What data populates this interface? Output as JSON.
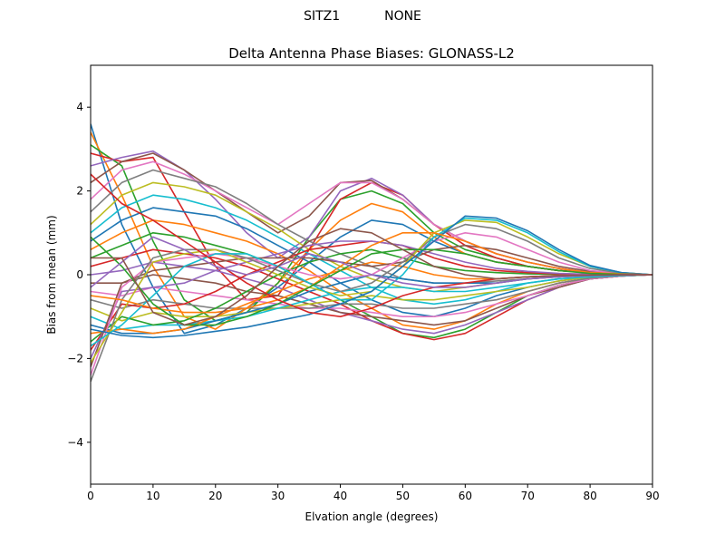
{
  "figure": {
    "suptitle": "SITZ1           NONE"
  },
  "chart_data": {
    "type": "line",
    "title": "Delta Antenna Phase Biases: GLONASS-L2",
    "xlabel": "Elvation angle (degrees)",
    "ylabel": "Bias from mean (mm)",
    "xlim": [
      0,
      90
    ],
    "ylim": [
      -5,
      5
    ],
    "xticks": [
      0,
      10,
      20,
      30,
      40,
      50,
      60,
      70,
      80,
      90
    ],
    "yticks": [
      -4,
      -2,
      0,
      2,
      4
    ],
    "ytick_labels": [
      "−4",
      "−2",
      "0",
      "2",
      "4"
    ],
    "grid": false,
    "legend": "none",
    "x": [
      0,
      5,
      10,
      15,
      20,
      25,
      30,
      35,
      40,
      45,
      50,
      55,
      60,
      65,
      70,
      75,
      80,
      85,
      90
    ],
    "colors": [
      "#1f77b4",
      "#ff7f0e",
      "#2ca02c",
      "#d62728",
      "#9467bd",
      "#8c564b",
      "#e377c2",
      "#7f7f7f",
      "#bcbd22",
      "#17becf"
    ],
    "series": [
      {
        "values": [
          3.6,
          1.2,
          -0.3,
          -1.4,
          -1.2,
          -0.8,
          -0.3,
          0.3,
          0.9,
          1.3,
          1.2,
          0.8,
          0.5,
          0.3,
          0.2,
          0.1,
          0.05,
          0.02,
          0.0
        ]
      },
      {
        "values": [
          3.4,
          1.9,
          0.2,
          -1.0,
          -1.3,
          -0.8,
          -0.2,
          0.6,
          1.3,
          1.7,
          1.5,
          0.9,
          0.5,
          0.3,
          0.2,
          0.1,
          0.05,
          0.02,
          0.0
        ]
      },
      {
        "values": [
          3.1,
          2.6,
          0.8,
          -0.6,
          -1.1,
          -0.9,
          -0.2,
          0.9,
          1.8,
          2.0,
          1.7,
          1.0,
          0.6,
          0.4,
          0.2,
          0.1,
          0.05,
          0.02,
          0.0
        ]
      },
      {
        "values": [
          2.9,
          2.7,
          2.8,
          1.5,
          0.2,
          -0.6,
          -0.5,
          0.6,
          1.8,
          2.2,
          1.9,
          1.2,
          0.7,
          0.4,
          0.2,
          0.1,
          0.05,
          0.02,
          0.0
        ]
      },
      {
        "values": [
          2.6,
          2.8,
          2.95,
          2.5,
          1.8,
          1.0,
          0.4,
          0.9,
          2.0,
          2.3,
          1.9,
          1.2,
          0.8,
          0.5,
          0.3,
          0.15,
          0.05,
          0.02,
          0.0
        ]
      },
      {
        "values": [
          2.2,
          2.7,
          2.9,
          2.5,
          2.0,
          1.5,
          1.0,
          1.4,
          2.2,
          2.25,
          1.8,
          1.2,
          0.8,
          0.5,
          0.3,
          0.15,
          0.05,
          0.02,
          0.0
        ]
      },
      {
        "values": [
          1.8,
          2.5,
          2.7,
          2.4,
          2.0,
          1.6,
          1.2,
          1.7,
          2.2,
          2.2,
          1.8,
          1.2,
          0.8,
          0.5,
          0.3,
          0.15,
          0.05,
          0.02,
          0.0
        ]
      },
      {
        "values": [
          1.5,
          2.2,
          2.5,
          2.3,
          2.1,
          1.7,
          1.2,
          0.8,
          0.5,
          0.2,
          -0.1,
          -0.2,
          -0.2,
          -0.15,
          -0.1,
          -0.05,
          -0.02,
          -0.01,
          0.0
        ]
      },
      {
        "values": [
          1.2,
          1.9,
          2.2,
          2.1,
          1.9,
          1.5,
          1.1,
          0.6,
          0.2,
          -0.1,
          -0.3,
          -0.4,
          -0.3,
          -0.2,
          -0.1,
          -0.05,
          -0.02,
          -0.01,
          0.0
        ]
      },
      {
        "values": [
          1.0,
          1.6,
          1.9,
          1.8,
          1.6,
          1.3,
          0.9,
          0.5,
          0.1,
          -0.3,
          -0.6,
          -0.7,
          -0.6,
          -0.4,
          -0.2,
          -0.1,
          -0.05,
          -0.02,
          0.0
        ]
      },
      {
        "values": [
          0.8,
          1.3,
          1.6,
          1.5,
          1.4,
          1.1,
          0.7,
          0.3,
          -0.2,
          -0.6,
          -0.9,
          -1.0,
          -0.8,
          -0.5,
          -0.3,
          -0.15,
          -0.05,
          -0.02,
          0.0
        ]
      },
      {
        "values": [
          0.6,
          1.0,
          1.3,
          1.2,
          1.0,
          0.8,
          0.5,
          0.1,
          -0.4,
          -0.8,
          -1.2,
          -1.3,
          -1.1,
          -0.7,
          -0.4,
          -0.2,
          -0.08,
          -0.02,
          0.0
        ]
      },
      {
        "values": [
          0.4,
          0.7,
          1.0,
          0.9,
          0.7,
          0.5,
          0.2,
          -0.2,
          -0.6,
          -1.0,
          -1.4,
          -1.5,
          -1.3,
          -0.9,
          -0.5,
          -0.25,
          -0.1,
          -0.03,
          0.0
        ]
      },
      {
        "values": [
          0.2,
          0.4,
          0.6,
          0.5,
          0.4,
          0.2,
          -0.1,
          -0.4,
          -0.7,
          -1.1,
          -1.4,
          -1.55,
          -1.4,
          -1.0,
          -0.6,
          -0.3,
          -0.1,
          -0.03,
          0.0
        ]
      },
      {
        "values": [
          0.0,
          0.1,
          0.3,
          0.2,
          0.1,
          -0.1,
          -0.3,
          -0.6,
          -0.9,
          -1.1,
          -1.3,
          -1.4,
          -1.2,
          -0.9,
          -0.6,
          -0.3,
          -0.1,
          -0.03,
          0.0
        ]
      },
      {
        "values": [
          -0.2,
          -0.2,
          0.0,
          -0.1,
          -0.2,
          -0.4,
          -0.5,
          -0.7,
          -0.9,
          -1.0,
          -1.1,
          -1.2,
          -1.1,
          -0.8,
          -0.5,
          -0.3,
          -0.1,
          -0.03,
          0.0
        ]
      },
      {
        "values": [
          -0.4,
          -0.5,
          -0.3,
          -0.4,
          -0.5,
          -0.6,
          -0.7,
          -0.8,
          -0.8,
          -0.9,
          -1.0,
          -1.0,
          -0.9,
          -0.7,
          -0.5,
          -0.25,
          -0.1,
          -0.03,
          0.0
        ]
      },
      {
        "values": [
          -0.6,
          -0.8,
          -0.6,
          -0.7,
          -0.8,
          -0.8,
          -0.8,
          -0.8,
          -0.7,
          -0.7,
          -0.8,
          -0.8,
          -0.7,
          -0.6,
          -0.4,
          -0.2,
          -0.08,
          -0.02,
          0.0
        ]
      },
      {
        "values": [
          -0.8,
          -1.1,
          -0.9,
          -1.0,
          -1.0,
          -0.9,
          -0.8,
          -0.7,
          -0.6,
          -0.5,
          -0.6,
          -0.6,
          -0.5,
          -0.4,
          -0.3,
          -0.15,
          -0.05,
          -0.02,
          0.0
        ]
      },
      {
        "values": [
          -1.0,
          -1.3,
          -1.2,
          -1.2,
          -1.1,
          -1.0,
          -0.8,
          -0.6,
          -0.4,
          -0.3,
          -0.3,
          -0.4,
          -0.4,
          -0.3,
          -0.2,
          -0.1,
          -0.05,
          -0.02,
          0.0
        ]
      },
      {
        "values": [
          -1.2,
          -1.4,
          -1.4,
          -1.3,
          -1.1,
          -0.9,
          -0.7,
          -0.4,
          -0.2,
          0.0,
          -0.1,
          -0.2,
          -0.2,
          -0.2,
          -0.1,
          -0.05,
          -0.02,
          -0.01,
          0.0
        ]
      },
      {
        "values": [
          -1.4,
          -1.3,
          -1.4,
          -1.3,
          -1.0,
          -0.7,
          -0.4,
          -0.1,
          0.1,
          0.3,
          0.2,
          0.0,
          -0.1,
          -0.1,
          -0.05,
          -0.02,
          -0.01,
          0.0,
          0.0
        ]
      },
      {
        "values": [
          -1.6,
          -1.0,
          -1.2,
          -1.1,
          -0.8,
          -0.4,
          0.0,
          0.3,
          0.5,
          0.6,
          0.4,
          0.2,
          0.1,
          0.05,
          0.02,
          0.01,
          0.0,
          0.0,
          0.0
        ]
      },
      {
        "values": [
          -1.8,
          -0.7,
          -0.8,
          -0.7,
          -0.4,
          0.0,
          0.3,
          0.6,
          0.7,
          0.8,
          0.7,
          0.4,
          0.2,
          0.1,
          0.05,
          0.02,
          0.01,
          0.0,
          0.0
        ]
      },
      {
        "values": [
          -2.0,
          -0.4,
          -0.3,
          -0.2,
          0.1,
          0.3,
          0.5,
          0.7,
          0.8,
          0.8,
          0.7,
          0.5,
          0.3,
          0.15,
          0.08,
          0.03,
          0.01,
          0.0,
          0.0
        ]
      },
      {
        "values": [
          -2.2,
          -0.2,
          0.1,
          0.2,
          0.3,
          0.4,
          0.4,
          0.4,
          0.3,
          0.2,
          0.3,
          0.6,
          0.7,
          0.6,
          0.4,
          0.2,
          0.08,
          0.02,
          0.0
        ]
      },
      {
        "values": [
          -2.4,
          -0.3,
          0.3,
          0.4,
          0.5,
          0.4,
          0.2,
          0.0,
          -0.1,
          0.0,
          0.4,
          0.8,
          1.0,
          0.9,
          0.6,
          0.3,
          0.1,
          0.03,
          0.0
        ]
      },
      {
        "values": [
          -2.55,
          -0.6,
          0.4,
          0.6,
          0.6,
          0.4,
          0.1,
          -0.2,
          -0.4,
          -0.2,
          0.3,
          0.9,
          1.2,
          1.1,
          0.8,
          0.4,
          0.15,
          0.04,
          0.0
        ]
      },
      {
        "values": [
          -2.1,
          -0.9,
          0.3,
          0.5,
          0.6,
          0.3,
          0.0,
          -0.3,
          -0.5,
          -0.4,
          0.2,
          1.0,
          1.3,
          1.25,
          0.9,
          0.5,
          0.2,
          0.05,
          0.0
        ]
      },
      {
        "values": [
          -1.7,
          -1.2,
          -0.5,
          0.2,
          0.5,
          0.5,
          0.2,
          -0.2,
          -0.6,
          -0.6,
          0.0,
          0.9,
          1.35,
          1.3,
          1.0,
          0.55,
          0.2,
          0.05,
          0.0
        ]
      },
      {
        "values": [
          -1.3,
          -1.45,
          -1.5,
          -1.45,
          -1.35,
          -1.25,
          -1.1,
          -0.95,
          -0.7,
          -0.4,
          0.2,
          0.8,
          1.4,
          1.35,
          1.05,
          0.6,
          0.22,
          0.05,
          0.0
        ]
      },
      {
        "values": [
          -0.5,
          -0.6,
          -0.8,
          -0.9,
          -0.9,
          -0.8,
          -0.6,
          -0.3,
          0.2,
          0.7,
          1.0,
          1.0,
          0.8,
          0.5,
          0.3,
          0.15,
          0.05,
          0.02,
          0.0
        ]
      },
      {
        "values": [
          0.9,
          0.2,
          -0.7,
          -1.2,
          -1.2,
          -1.0,
          -0.7,
          -0.3,
          0.1,
          0.5,
          0.6,
          0.6,
          0.5,
          0.3,
          0.2,
          0.1,
          0.03,
          0.01,
          0.0
        ]
      },
      {
        "values": [
          2.4,
          1.7,
          1.3,
          0.8,
          0.3,
          -0.2,
          -0.6,
          -0.9,
          -1.0,
          -0.8,
          -0.5,
          -0.3,
          -0.2,
          -0.1,
          -0.05,
          -0.02,
          -0.01,
          0.0,
          0.0
        ]
      },
      {
        "values": [
          -0.3,
          0.3,
          0.9,
          0.6,
          0.2,
          0.0,
          0.2,
          0.5,
          0.3,
          0.0,
          -0.2,
          -0.3,
          -0.3,
          -0.2,
          -0.1,
          -0.05,
          -0.02,
          0.0,
          0.0
        ]
      },
      {
        "values": [
          0.4,
          0.4,
          -0.9,
          -1.2,
          -1.0,
          -0.5,
          0.2,
          0.8,
          1.1,
          1.0,
          0.6,
          0.2,
          0.0,
          -0.1,
          -0.05,
          -0.02,
          -0.01,
          0.0,
          0.0
        ]
      }
    ]
  }
}
